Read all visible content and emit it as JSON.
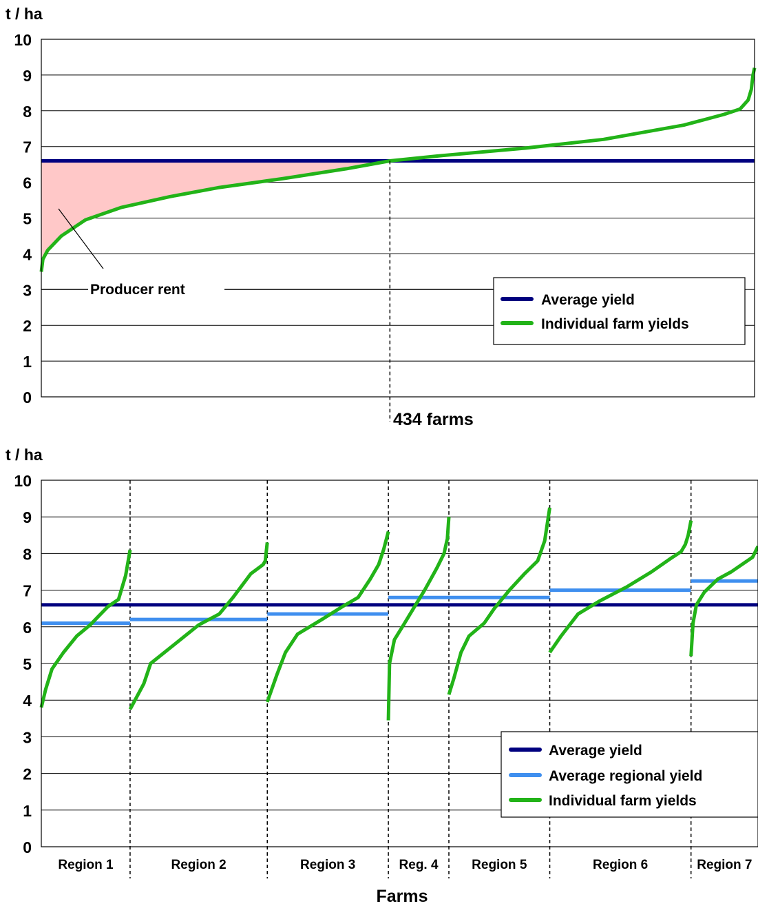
{
  "chart_data": [
    {
      "type": "line",
      "y_unit_label": "t / ha",
      "ylim": [
        0,
        10
      ],
      "yticks": [
        "0",
        "1",
        "2",
        "3",
        "4",
        "5",
        "6",
        "7",
        "8",
        "9",
        "10"
      ],
      "grid": true,
      "x_marker_label": "434 farms",
      "x_marker_index": 434,
      "n_farms": 888,
      "annotation": "Producer rent",
      "legend_position": "bottom-right",
      "legend": [
        "Average yield",
        "Individual farm yields"
      ],
      "colors": {
        "average": "#00007f",
        "individual": "#22b318",
        "rent_fill": "#ffc8c8"
      },
      "average_yield": 6.6,
      "series": [
        {
          "name": "Individual farm yields",
          "points": [
            [
              0,
              3.5
            ],
            [
              2,
              3.85
            ],
            [
              8,
              4.1
            ],
            [
              25,
              4.5
            ],
            [
              55,
              4.95
            ],
            [
              100,
              5.3
            ],
            [
              160,
              5.6
            ],
            [
              220,
              5.85
            ],
            [
              300,
              6.1
            ],
            [
              380,
              6.38
            ],
            [
              434,
              6.6
            ],
            [
              500,
              6.75
            ],
            [
              600,
              6.95
            ],
            [
              700,
              7.2
            ],
            [
              800,
              7.6
            ],
            [
              850,
              7.9
            ],
            [
              870,
              8.05
            ],
            [
              880,
              8.3
            ],
            [
              884,
              8.6
            ],
            [
              886,
              9.0
            ],
            [
              888,
              9.2
            ]
          ]
        }
      ]
    },
    {
      "type": "line",
      "y_unit_label": "t / ha",
      "ylim": [
        0,
        10
      ],
      "yticks": [
        "0",
        "1",
        "2",
        "3",
        "4",
        "5",
        "6",
        "7",
        "8",
        "9",
        "10"
      ],
      "grid": true,
      "xlabel": "Farms",
      "legend_position": "bottom-right",
      "legend": [
        "Average yield",
        "Average regional yield",
        "Individual farm yields"
      ],
      "colors": {
        "average": "#00007f",
        "regional": "#3f8fef",
        "individual": "#22b318"
      },
      "average_yield": 6.6,
      "regions": [
        {
          "label": "Region 1",
          "n": 110,
          "avg": 6.1,
          "curve": [
            [
              0,
              3.8
            ],
            [
              0.05,
              4.3
            ],
            [
              0.12,
              4.85
            ],
            [
              0.25,
              5.3
            ],
            [
              0.4,
              5.75
            ],
            [
              0.55,
              6.05
            ],
            [
              0.65,
              6.3
            ],
            [
              0.75,
              6.55
            ],
            [
              0.87,
              6.75
            ],
            [
              0.95,
              7.4
            ],
            [
              1,
              8.1
            ]
          ]
        },
        {
          "label": "Region 2",
          "n": 170,
          "avg": 6.2,
          "curve": [
            [
              0,
              3.75
            ],
            [
              0.1,
              4.45
            ],
            [
              0.15,
              5.0
            ],
            [
              0.3,
              5.45
            ],
            [
              0.5,
              6.05
            ],
            [
              0.65,
              6.35
            ],
            [
              0.75,
              6.8
            ],
            [
              0.88,
              7.45
            ],
            [
              0.97,
              7.7
            ],
            [
              0.985,
              7.8
            ],
            [
              1,
              8.3
            ]
          ]
        },
        {
          "label": "Region 3",
          "n": 150,
          "avg": 6.35,
          "curve": [
            [
              0,
              3.95
            ],
            [
              0.08,
              4.7
            ],
            [
              0.15,
              5.3
            ],
            [
              0.25,
              5.8
            ],
            [
              0.45,
              6.2
            ],
            [
              0.62,
              6.55
            ],
            [
              0.75,
              6.8
            ],
            [
              0.85,
              7.3
            ],
            [
              0.92,
              7.7
            ],
            [
              0.96,
              8.1
            ],
            [
              1,
              8.6
            ]
          ]
        },
        {
          "label": "Reg. 4",
          "n": 75,
          "avg": 6.8,
          "curve": [
            [
              0,
              3.45
            ],
            [
              0.02,
              5.0
            ],
            [
              0.1,
              5.65
            ],
            [
              0.25,
              6.05
            ],
            [
              0.45,
              6.6
            ],
            [
              0.6,
              7.0
            ],
            [
              0.8,
              7.6
            ],
            [
              0.92,
              8.0
            ],
            [
              0.96,
              8.3
            ],
            [
              0.975,
              8.4
            ],
            [
              1,
              9.0
            ]
          ]
        },
        {
          "label": "Region 5",
          "n": 125,
          "avg": 6.8,
          "curve": [
            [
              0,
              4.15
            ],
            [
              0.05,
              4.6
            ],
            [
              0.12,
              5.3
            ],
            [
              0.2,
              5.75
            ],
            [
              0.35,
              6.1
            ],
            [
              0.45,
              6.5
            ],
            [
              0.6,
              7.0
            ],
            [
              0.75,
              7.45
            ],
            [
              0.88,
              7.8
            ],
            [
              0.95,
              8.35
            ],
            [
              1,
              9.25
            ]
          ]
        },
        {
          "label": "Region 6",
          "n": 175,
          "avg": 7.0,
          "curve": [
            [
              0,
              5.3
            ],
            [
              0.08,
              5.75
            ],
            [
              0.2,
              6.35
            ],
            [
              0.35,
              6.7
            ],
            [
              0.55,
              7.1
            ],
            [
              0.72,
              7.5
            ],
            [
              0.85,
              7.85
            ],
            [
              0.93,
              8.05
            ],
            [
              0.96,
              8.25
            ],
            [
              0.98,
              8.5
            ],
            [
              1,
              8.9
            ]
          ]
        },
        {
          "label": "Region 7",
          "n": 83,
          "avg": 7.25,
          "curve": [
            [
              0,
              5.2
            ],
            [
              0.03,
              6.1
            ],
            [
              0.08,
              6.6
            ],
            [
              0.2,
              6.95
            ],
            [
              0.4,
              7.3
            ],
            [
              0.6,
              7.5
            ],
            [
              0.8,
              7.75
            ],
            [
              0.92,
              7.9
            ],
            [
              1,
              8.2
            ]
          ]
        }
      ]
    }
  ]
}
